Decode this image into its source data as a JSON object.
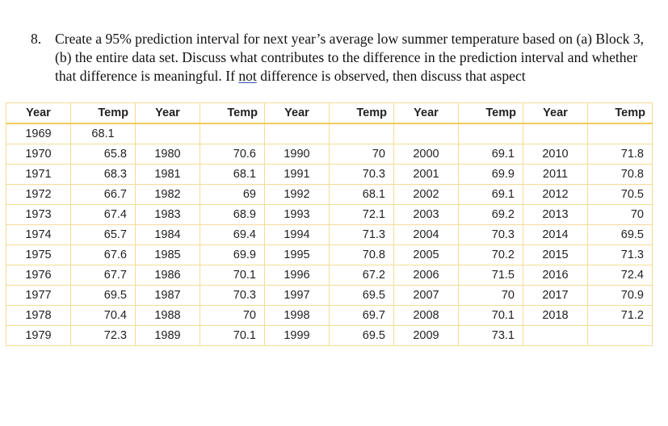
{
  "question": {
    "number": "8.",
    "text_before": "Create a 95% prediction interval for next year’s average low summer temperature based on (a) Block 3, (b) the entire data set.  Discuss what contributes to the difference in the prediction interval and whether that difference is meaningful.  If ",
    "underlined": "not",
    "text_after": " difference is observed, then discuss that aspect"
  },
  "table": {
    "headers": [
      "Year",
      "Temp",
      "Year",
      "Temp",
      "Year",
      "Temp",
      "Year",
      "Temp",
      "Year",
      "Temp"
    ],
    "rows": [
      [
        "1969",
        "68.1",
        "",
        "",
        "",
        "",
        "",
        "",
        "",
        ""
      ],
      [
        "1970",
        "65.8",
        "1980",
        "70.6",
        "1990",
        "70",
        "2000",
        "69.1",
        "2010",
        "71.8"
      ],
      [
        "1971",
        "68.3",
        "1981",
        "68.1",
        "1991",
        "70.3",
        "2001",
        "69.9",
        "2011",
        "70.8"
      ],
      [
        "1972",
        "66.7",
        "1982",
        "69",
        "1992",
        "68.1",
        "2002",
        "69.1",
        "2012",
        "70.5"
      ],
      [
        "1973",
        "67.4",
        "1983",
        "68.9",
        "1993",
        "72.1",
        "2003",
        "69.2",
        "2013",
        "70"
      ],
      [
        "1974",
        "65.7",
        "1984",
        "69.4",
        "1994",
        "71.3",
        "2004",
        "70.3",
        "2014",
        "69.5"
      ],
      [
        "1975",
        "67.6",
        "1985",
        "69.9",
        "1995",
        "70.8",
        "2005",
        "70.2",
        "2015",
        "71.3"
      ],
      [
        "1976",
        "67.7",
        "1986",
        "70.1",
        "1996",
        "67.2",
        "2006",
        "71.5",
        "2016",
        "72.4"
      ],
      [
        "1977",
        "69.5",
        "1987",
        "70.3",
        "1997",
        "69.5",
        "2007",
        "70",
        "2017",
        "70.9"
      ],
      [
        "1978",
        "70.4",
        "1988",
        "70",
        "1998",
        "69.7",
        "2008",
        "70.1",
        "2018",
        "71.2"
      ],
      [
        "1979",
        "72.3",
        "1989",
        "70.1",
        "1999",
        "69.5",
        "2009",
        "73.1",
        "",
        ""
      ]
    ]
  },
  "colors": {
    "border": "#f5dc95",
    "header_rule": "#f0cb5a",
    "underline": "#2b4fbf"
  }
}
